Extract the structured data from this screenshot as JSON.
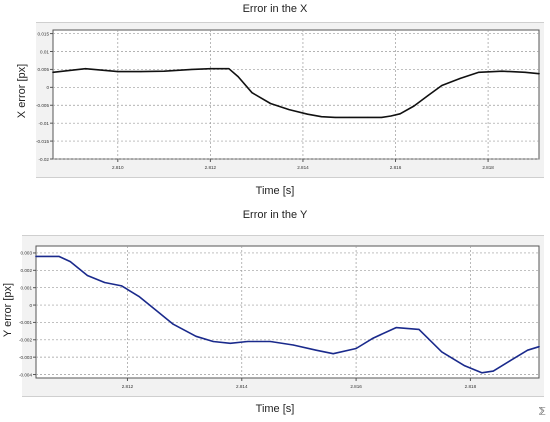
{
  "chart_data": [
    {
      "type": "line",
      "title": "Error in the X",
      "xlabel": "Time [s]",
      "ylabel": "X error [px]",
      "xlim": [
        2.8086,
        2.8191
      ],
      "ylim": [
        -0.02,
        0.016
      ],
      "xticks": [
        "2.810",
        "2.812",
        "2.814",
        "2.816",
        "2.818"
      ],
      "yticks": [
        "0.015",
        "0.01",
        "0.005",
        "0",
        "-0.005",
        "-0.01",
        "-0.015",
        "-0.02"
      ],
      "grid": true,
      "series": [
        {
          "color": "#111111",
          "x": [
            2.8086,
            2.8093,
            2.81,
            2.8105,
            2.811,
            2.8116,
            2.812,
            2.8124,
            2.8126,
            2.8129,
            2.8133,
            2.8137,
            2.8141,
            2.8144,
            2.8147,
            2.815,
            2.8154,
            2.8157,
            2.8159,
            2.8161,
            2.8164,
            2.8167,
            2.817,
            2.8174,
            2.8178,
            2.8183,
            2.8188,
            2.8191
          ],
          "y": [
            0.0042,
            0.0052,
            0.0044,
            0.0044,
            0.0045,
            0.005,
            0.0052,
            0.0052,
            0.003,
            -0.0015,
            -0.0045,
            -0.0062,
            -0.0075,
            -0.0082,
            -0.0084,
            -0.0084,
            -0.0084,
            -0.0084,
            -0.008,
            -0.0074,
            -0.0052,
            -0.0023,
            0.0005,
            0.0025,
            0.0042,
            0.0045,
            0.0042,
            0.0038
          ]
        }
      ]
    },
    {
      "type": "line",
      "title": "Error in the Y",
      "xlabel": "Time [s]",
      "ylabel": "Y error [px]",
      "xlim": [
        2.8104,
        2.8192
      ],
      "ylim": [
        -0.0042,
        0.0034
      ],
      "xticks": [
        "2.812",
        "2.814",
        "2.816",
        "2.818"
      ],
      "yticks": [
        "0.003",
        "0.002",
        "0.001",
        "0",
        "-0.001",
        "-0.002",
        "-0.003",
        "-0.004"
      ],
      "grid": true,
      "series": [
        {
          "color": "#1a2a8c",
          "x": [
            2.8104,
            2.8108,
            2.811,
            2.8113,
            2.8116,
            2.8119,
            2.8122,
            2.8125,
            2.8128,
            2.8132,
            2.8135,
            2.8138,
            2.8141,
            2.8145,
            2.8149,
            2.8153,
            2.8156,
            2.816,
            2.8163,
            2.8167,
            2.8171,
            2.8175,
            2.8179,
            2.8182,
            2.8184,
            2.8187,
            2.819,
            2.8192
          ],
          "y": [
            0.0028,
            0.0028,
            0.0025,
            0.0017,
            0.0013,
            0.0011,
            0.0005,
            -0.0003,
            -0.0011,
            -0.0018,
            -0.0021,
            -0.0022,
            -0.0021,
            -0.0021,
            -0.0023,
            -0.0026,
            -0.0028,
            -0.0025,
            -0.0019,
            -0.0013,
            -0.0014,
            -0.0027,
            -0.0035,
            -0.0039,
            -0.0038,
            -0.0032,
            -0.0026,
            -0.0024
          ]
        }
      ]
    }
  ]
}
